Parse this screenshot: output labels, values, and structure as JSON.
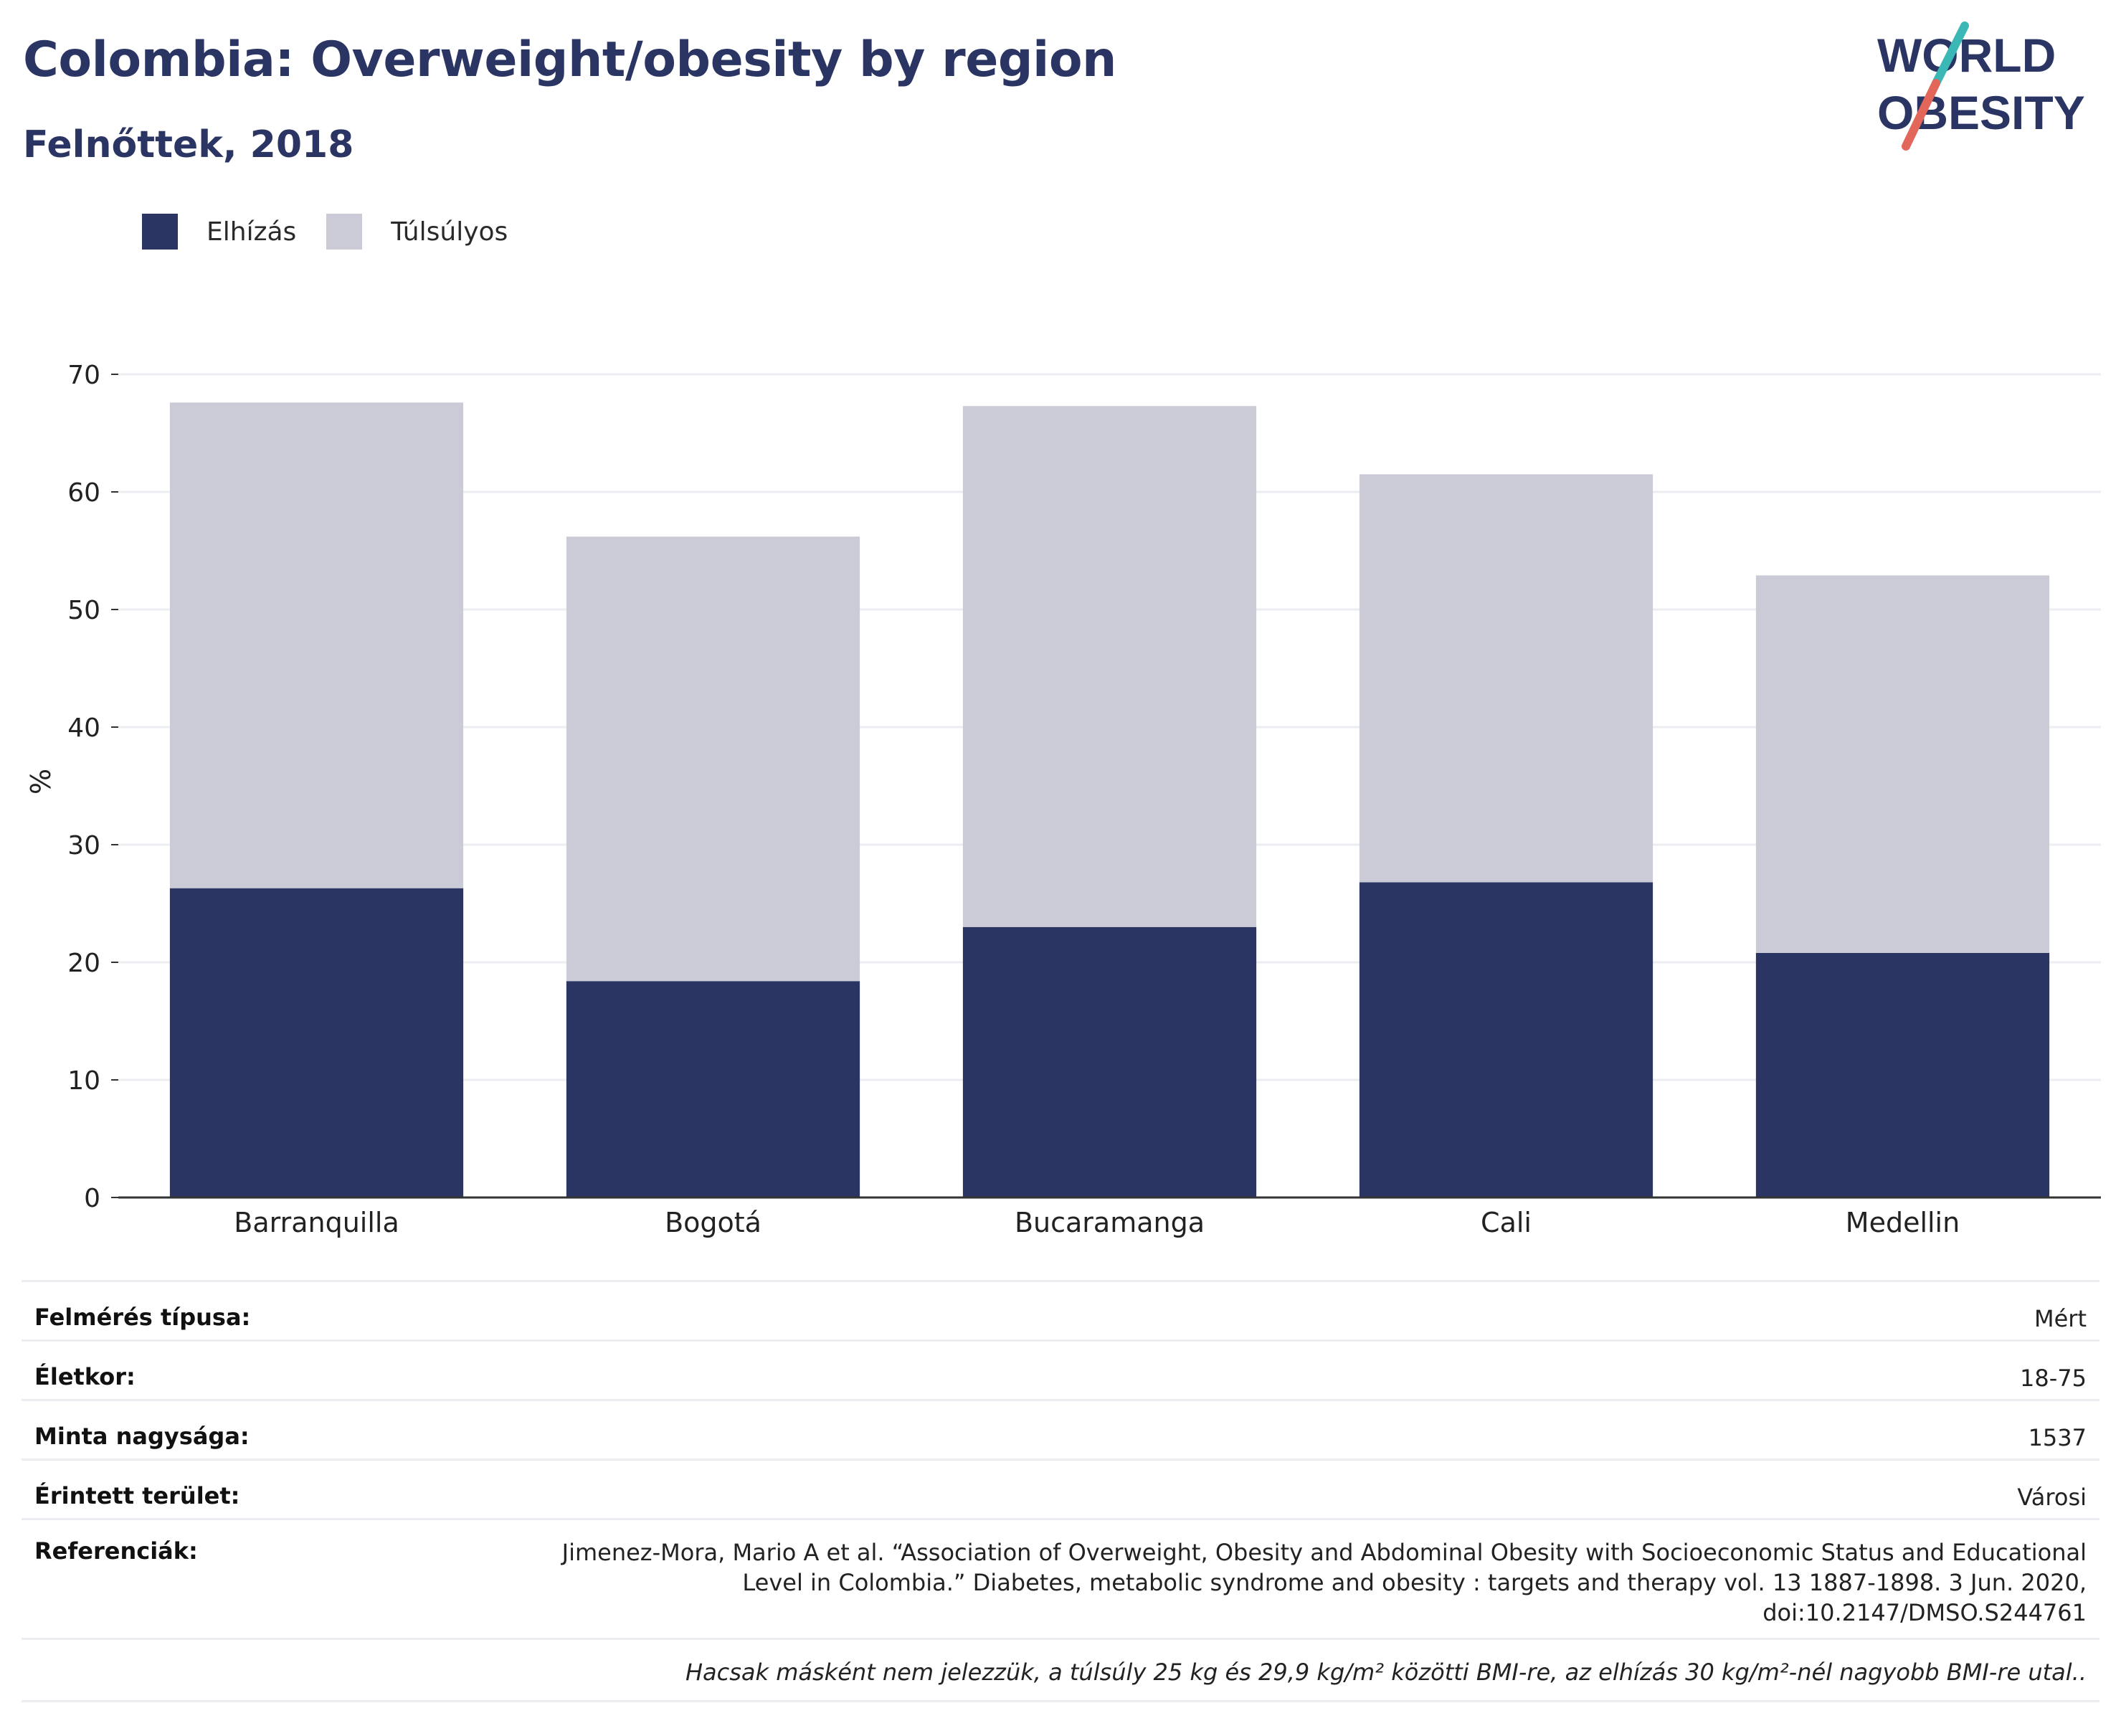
{
  "header": {
    "title": "Colombia: Overweight/obesity by region",
    "subtitle": "Felnőttek, 2018"
  },
  "logo": {
    "line1": "WORLD",
    "line2": "OBESITY",
    "colors": {
      "text": "#2a3563",
      "teal": "#3bb8b5",
      "coral": "#e2675a"
    }
  },
  "colors": {
    "obese": "#2a3563",
    "overweight": "#cacbd7",
    "grid": "#ebedf1",
    "axis": "#333333"
  },
  "chart_data": {
    "type": "bar",
    "stacked": true,
    "ylabel": "%",
    "ylim": [
      0,
      70
    ],
    "yticks": [
      0,
      10,
      20,
      30,
      40,
      50,
      60,
      70
    ],
    "grid": true,
    "legend_position": "top-left",
    "categories": [
      "Barranquilla",
      "Bogotá",
      "Bucaramanga",
      "Cali",
      "Medellin"
    ],
    "series": [
      {
        "name": "Elhízás",
        "color": "#2a3563",
        "values": [
          26.3,
          18.4,
          23.0,
          26.8,
          20.8
        ]
      },
      {
        "name": "Túlsúlyos",
        "color": "#cacbd7",
        "values": [
          41.3,
          37.8,
          44.3,
          34.7,
          32.1
        ]
      }
    ]
  },
  "info": {
    "rows": [
      {
        "label": "Felmérés típusa:",
        "value": "Mért"
      },
      {
        "label": "Életkor:",
        "value": "18-75"
      },
      {
        "label": "Minta nagysága:",
        "value": "1537"
      },
      {
        "label": "Érintett terület:",
        "value": "Városi"
      }
    ],
    "references_label": "Referenciák:",
    "references_lines": [
      "Jimenez-Mora, Mario A et al. “Association of Overweight, Obesity and Abdominal Obesity with Socioeconomic Status and Educational",
      "Level in Colombia.” Diabetes, metabolic syndrome and obesity : targets and therapy vol. 13 1887-1898. 3 Jun. 2020,",
      "doi:10.2147/DMSO.S244761"
    ],
    "footnote": "Hacsak másként nem jelezzük, a túlsúly 25 kg és 29,9 kg/m² közötti BMI-re, az elhízás 30 kg/m²-nél nagyobb BMI-re utal.."
  }
}
